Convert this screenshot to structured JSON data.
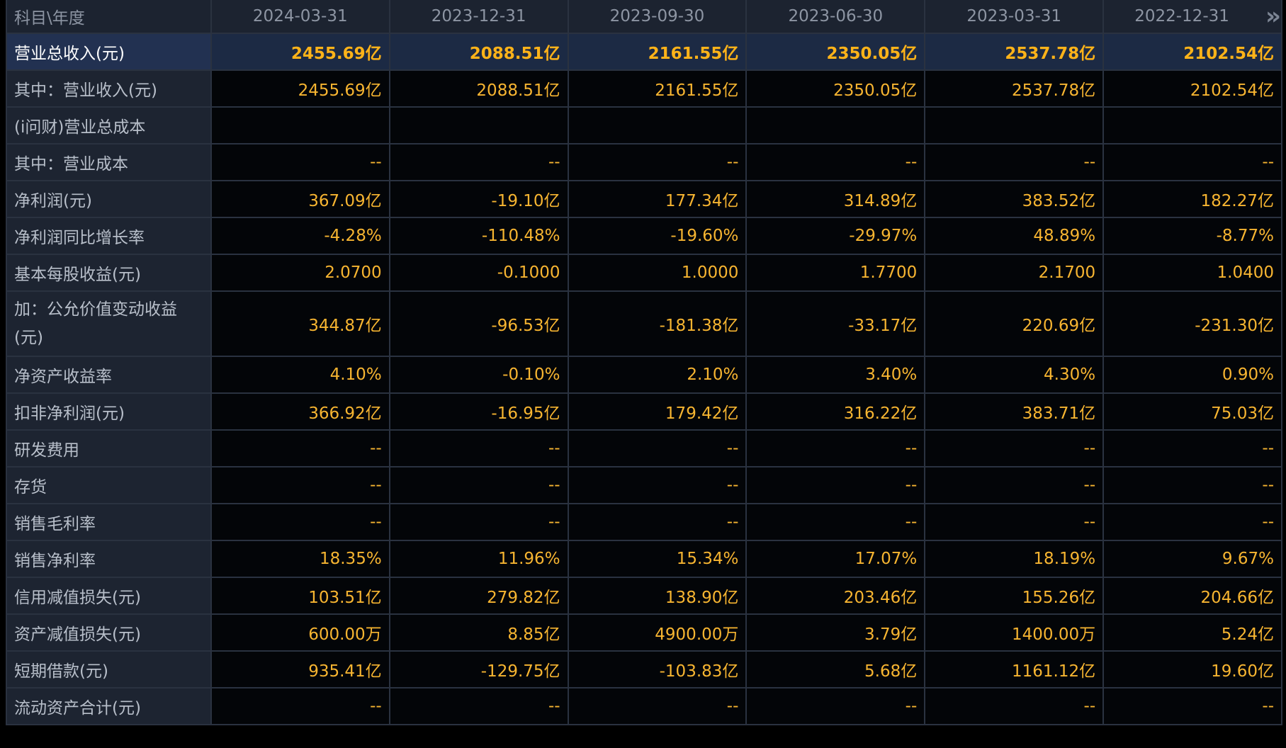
{
  "header": {
    "label": "科目\\年度",
    "columns": [
      "2024-03-31",
      "2023-12-31",
      "2023-09-30",
      "2023-06-30",
      "2023-03-31",
      "2022-12-31"
    ],
    "next_icon": "double-chevron-right-icon",
    "next_glyph": "»"
  },
  "rows": [
    {
      "label": "营业总收入(元)",
      "values": [
        "2455.69亿",
        "2088.51亿",
        "2161.55亿",
        "2350.05亿",
        "2537.78亿",
        "2102.54亿"
      ]
    },
    {
      "label": "其中：营业收入(元)",
      "values": [
        "2455.69亿",
        "2088.51亿",
        "2161.55亿",
        "2350.05亿",
        "2537.78亿",
        "2102.54亿"
      ]
    },
    {
      "label": "(i问财)营业总成本",
      "values": [
        "",
        "",
        "",
        "",
        "",
        ""
      ]
    },
    {
      "label": "其中：营业成本",
      "values": [
        "--",
        "--",
        "--",
        "--",
        "--",
        "--"
      ]
    },
    {
      "label": "净利润(元)",
      "values": [
        "367.09亿",
        "-19.10亿",
        "177.34亿",
        "314.89亿",
        "383.52亿",
        "182.27亿"
      ]
    },
    {
      "label": "净利润同比增长率",
      "values": [
        "-4.28%",
        "-110.48%",
        "-19.60%",
        "-29.97%",
        "48.89%",
        "-8.77%"
      ]
    },
    {
      "label": "基本每股收益(元)",
      "values": [
        "2.0700",
        "-0.1000",
        "1.0000",
        "1.7700",
        "2.1700",
        "1.0400"
      ]
    },
    {
      "label": "加：公允价值变动收益(元)",
      "values": [
        "344.87亿",
        "-96.53亿",
        "-181.38亿",
        "-33.17亿",
        "220.69亿",
        "-231.30亿"
      ]
    },
    {
      "label": "净资产收益率",
      "values": [
        "4.10%",
        "-0.10%",
        "2.10%",
        "3.40%",
        "4.30%",
        "0.90%"
      ]
    },
    {
      "label": "扣非净利润(元)",
      "values": [
        "366.92亿",
        "-16.95亿",
        "179.42亿",
        "316.22亿",
        "383.71亿",
        "75.03亿"
      ]
    },
    {
      "label": "研发费用",
      "values": [
        "--",
        "--",
        "--",
        "--",
        "--",
        "--"
      ]
    },
    {
      "label": "存货",
      "values": [
        "--",
        "--",
        "--",
        "--",
        "--",
        "--"
      ]
    },
    {
      "label": "销售毛利率",
      "values": [
        "--",
        "--",
        "--",
        "--",
        "--",
        "--"
      ]
    },
    {
      "label": "销售净利率",
      "values": [
        "18.35%",
        "11.96%",
        "15.34%",
        "17.07%",
        "18.19%",
        "9.67%"
      ]
    },
    {
      "label": "信用减值损失(元)",
      "values": [
        "103.51亿",
        "279.82亿",
        "138.90亿",
        "203.46亿",
        "155.26亿",
        "204.66亿"
      ]
    },
    {
      "label": "资产减值损失(元)",
      "values": [
        "600.00万",
        "8.85亿",
        "4900.00万",
        "3.79亿",
        "1400.00万",
        "5.24亿"
      ]
    },
    {
      "label": "短期借款(元)",
      "values": [
        "935.41亿",
        "-129.75亿",
        "-103.83亿",
        "5.68亿",
        "1161.12亿",
        "19.60亿"
      ]
    },
    {
      "label": "流动资产合计(元)",
      "values": [
        "--",
        "--",
        "--",
        "--",
        "--",
        "--"
      ]
    }
  ],
  "colors": {
    "background": "#000000",
    "label_bg": "#1d2431",
    "value_text": "#f7b531",
    "header_text": "#8d95a3",
    "highlight_row_bg": "#223151"
  }
}
